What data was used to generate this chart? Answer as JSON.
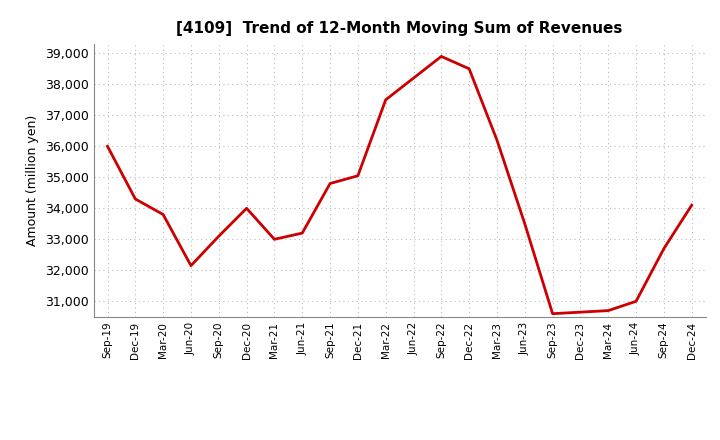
{
  "title": "[4109]  Trend of 12-Month Moving Sum of Revenues",
  "ylabel": "Amount (million yen)",
  "line_color": "#CC0000",
  "background_color": "#FFFFFF",
  "grid_color": "#BBBBBB",
  "ylim": [
    30500,
    39300
  ],
  "yticks": [
    31000,
    32000,
    33000,
    34000,
    35000,
    36000,
    37000,
    38000,
    39000
  ],
  "labels": [
    "Sep-19",
    "Dec-19",
    "Mar-20",
    "Jun-20",
    "Sep-20",
    "Dec-20",
    "Mar-21",
    "Jun-21",
    "Sep-21",
    "Dec-21",
    "Mar-22",
    "Jun-22",
    "Sep-22",
    "Dec-22",
    "Mar-23",
    "Jun-23",
    "Sep-23",
    "Dec-23",
    "Mar-24",
    "Jun-24",
    "Sep-24",
    "Dec-24"
  ],
  "values": [
    36000,
    34300,
    33800,
    32150,
    33100,
    34000,
    33000,
    33200,
    34800,
    35050,
    37500,
    38200,
    38900,
    38500,
    36200,
    33500,
    30600,
    30650,
    30700,
    31000,
    32700,
    34100
  ]
}
